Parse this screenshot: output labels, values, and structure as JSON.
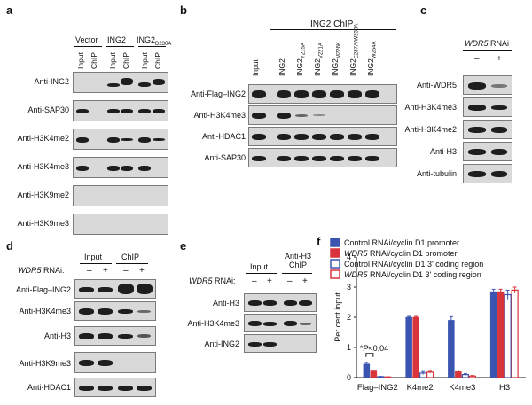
{
  "panel_a": {
    "letter": "a",
    "group_vector": "Vector",
    "group_ing2": "ING2",
    "group_mut": "ING2",
    "group_mut_sub": "D230A",
    "col_input": "Input",
    "col_chip": "ChIP",
    "rows": [
      "Anti-ING2",
      "Anti-SAP30",
      "Anti-H3K4me2",
      "Anti-H3K4me3",
      "Anti-H3K9me2",
      "Anti-H3K9me3"
    ]
  },
  "panel_b": {
    "letter": "b",
    "header": "ING2 ChIP",
    "col_input": "Input",
    "col_ing2": "ING2",
    "mutants": [
      {
        "base": "ING2",
        "sub": "Y215A"
      },
      {
        "base": "ING2",
        "sub": "V221A"
      },
      {
        "base": "ING2",
        "sub": "M226K"
      },
      {
        "base": "ING2",
        "sub": "E237A/W238A"
      },
      {
        "base": "ING2",
        "sub": "W254A"
      }
    ],
    "rows": [
      "Anti-Flag–ING2",
      "Anti-H3K4me3",
      "Anti-HDAC1",
      "Anti-SAP30"
    ]
  },
  "panel_c": {
    "letter": "c",
    "title_gene": "WDR5",
    "title_rest": " RNAi",
    "minus": "–",
    "plus": "+",
    "rows": [
      "Anti-WDR5",
      "Anti-H3K4me3",
      "Anti-H3K4me2",
      "Anti-H3",
      "Anti-tubulin"
    ]
  },
  "panel_d": {
    "letter": "d",
    "group_input": "Input",
    "group_chip": "ChIP",
    "rnai_gene": "WDR5",
    "rnai_rest": " RNAi:",
    "minus": "–",
    "plus": "+",
    "rows": [
      "Anti-Flag–ING2",
      "Anti-H3K4me3",
      "Anti-H3",
      "Anti-H3K9me3",
      "Anti-HDAC1"
    ]
  },
  "panel_e": {
    "letter": "e",
    "group_input": "Input",
    "group_chip_line1": "Anti-H3",
    "group_chip_line2": "ChIP",
    "rnai_gene": "WDR5",
    "rnai_rest": " RNAi:",
    "minus": "–",
    "plus": "+",
    "rows": [
      "Anti-H3",
      "Anti-H3K4me3",
      "Anti-ING2"
    ]
  },
  "panel_f": {
    "letter": "f",
    "annotation_p": "P",
    "annotation_rest": "<0.04",
    "annotation_star": "*"
  },
  "chart_data": {
    "type": "bar",
    "ylabel": "Per cent input",
    "ylim": [
      0,
      4
    ],
    "yticks": [
      "0",
      "1",
      "2",
      "3",
      "4"
    ],
    "categories": [
      "Flag–ING2",
      "K4me2",
      "K4me3",
      "H3"
    ],
    "series": [
      {
        "name": "Control RNAi/cyclin D1 promoter",
        "legend_gene": "",
        "legend_rest": "Control RNAi/cyclin D1 promoter",
        "color": "#3a55b0",
        "fill": true,
        "values": [
          0.45,
          2.0,
          1.9,
          2.85
        ],
        "errors": [
          0.05,
          0.03,
          0.12,
          0.08
        ]
      },
      {
        "name": "WDR5 RNAi/cyclin D1 promoter",
        "legend_gene": "WDR5",
        "legend_rest": " RNAi/cyclin D1 promoter",
        "color": "#d8343c",
        "fill": true,
        "values": [
          0.22,
          2.0,
          0.2,
          2.85
        ],
        "errors": [
          0.03,
          0.03,
          0.05,
          0.08
        ]
      },
      {
        "name": "Control RNAi/cyclin D1 3' coding region",
        "legend_gene": "",
        "legend_rest": "Control RNAi/cyclin D1 3' coding region",
        "color": "#3a55b0",
        "fill": false,
        "values": [
          0.03,
          0.15,
          0.1,
          2.75
        ],
        "errors": [
          0.01,
          0.05,
          0.03,
          0.15
        ]
      },
      {
        "name": "WDR5 RNAi/cyclin D1 3' coding region",
        "legend_gene": "WDR5",
        "legend_rest": " RNAi/cyclin D1 3' coding region",
        "color": "#d8343c",
        "fill": false,
        "values": [
          0.02,
          0.18,
          0.05,
          2.9
        ],
        "errors": [
          0.01,
          0.03,
          0.02,
          0.1
        ]
      }
    ]
  }
}
